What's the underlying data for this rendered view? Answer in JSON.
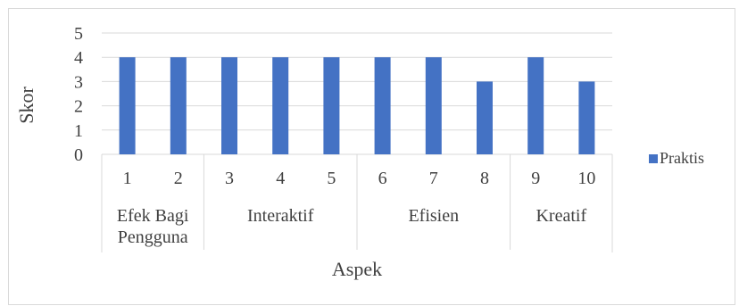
{
  "chart_data": {
    "type": "bar",
    "title": "",
    "xlabel": "Aspek",
    "ylabel": "Skor",
    "ylim": [
      0,
      5
    ],
    "yticks": [
      "0",
      "1",
      "2",
      "3",
      "4",
      "5"
    ],
    "categories": [
      "1",
      "2",
      "3",
      "4",
      "5",
      "6",
      "7",
      "8",
      "9",
      "10"
    ],
    "groups": [
      {
        "label_lines": [
          "Efek Bagi",
          "Pengguna"
        ],
        "start": 0,
        "end": 1
      },
      {
        "label_lines": [
          "Interaktif"
        ],
        "start": 2,
        "end": 4
      },
      {
        "label_lines": [
          "Efisien"
        ],
        "start": 5,
        "end": 7
      },
      {
        "label_lines": [
          "Kreatif"
        ],
        "start": 8,
        "end": 9
      }
    ],
    "series": [
      {
        "name": "Praktis",
        "values": [
          4,
          4,
          4,
          4,
          4,
          4,
          4,
          3,
          4,
          3
        ],
        "color": "#4472c4"
      }
    ],
    "grid": true,
    "legend_position": "right"
  }
}
